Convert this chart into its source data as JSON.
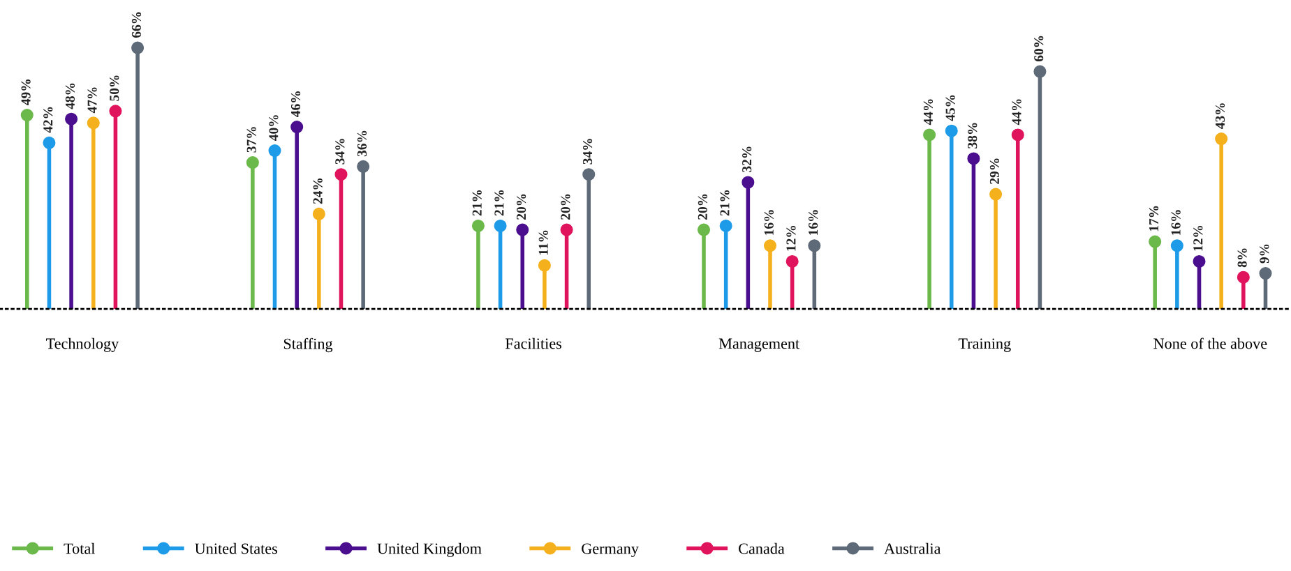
{
  "chart_data": {
    "type": "lollipop",
    "categories": [
      "Technology",
      "Staffing",
      "Facilities",
      "Management",
      "Training",
      "None of the above"
    ],
    "series": [
      {
        "name": "Total",
        "color": "#6cb94b",
        "values": [
          49,
          37,
          21,
          20,
          44,
          17
        ],
        "value_labels": [
          "49%",
          "37%",
          "21%",
          "20%",
          "44%",
          "17%"
        ]
      },
      {
        "name": "United States",
        "color": "#1d9be9",
        "values": [
          42,
          40,
          21,
          21,
          45,
          16
        ],
        "value_labels": [
          "42%",
          "40%",
          "21%",
          "21%",
          "45%",
          "16%"
        ]
      },
      {
        "name": "United Kingdom",
        "color": "#4a0e8f",
        "values": [
          48,
          46,
          20,
          32,
          38,
          12
        ],
        "value_labels": [
          "48%",
          "46%",
          "20%",
          "32%",
          "38%",
          "12%"
        ]
      },
      {
        "name": "Germany",
        "color": "#f5b11d",
        "values": [
          47,
          24,
          11,
          16,
          29,
          43
        ],
        "value_labels": [
          "47%",
          "24%",
          "11%",
          "16%",
          "29%",
          "43%"
        ]
      },
      {
        "name": "Canada",
        "color": "#e0145c",
        "values": [
          50,
          34,
          20,
          12,
          44,
          8
        ],
        "value_labels": [
          "50%",
          "34%",
          "20%",
          "12%",
          "44%",
          "8%"
        ]
      },
      {
        "name": "Australia",
        "color": "#5e6a78",
        "values": [
          66,
          36,
          34,
          16,
          60,
          9
        ],
        "value_labels": [
          "66%",
          "36%",
          "34%",
          "16%",
          "60%",
          "9%"
        ]
      }
    ],
    "relative": false,
    "marker": "circle",
    "legend": "bottom",
    "grid": false
  }
}
